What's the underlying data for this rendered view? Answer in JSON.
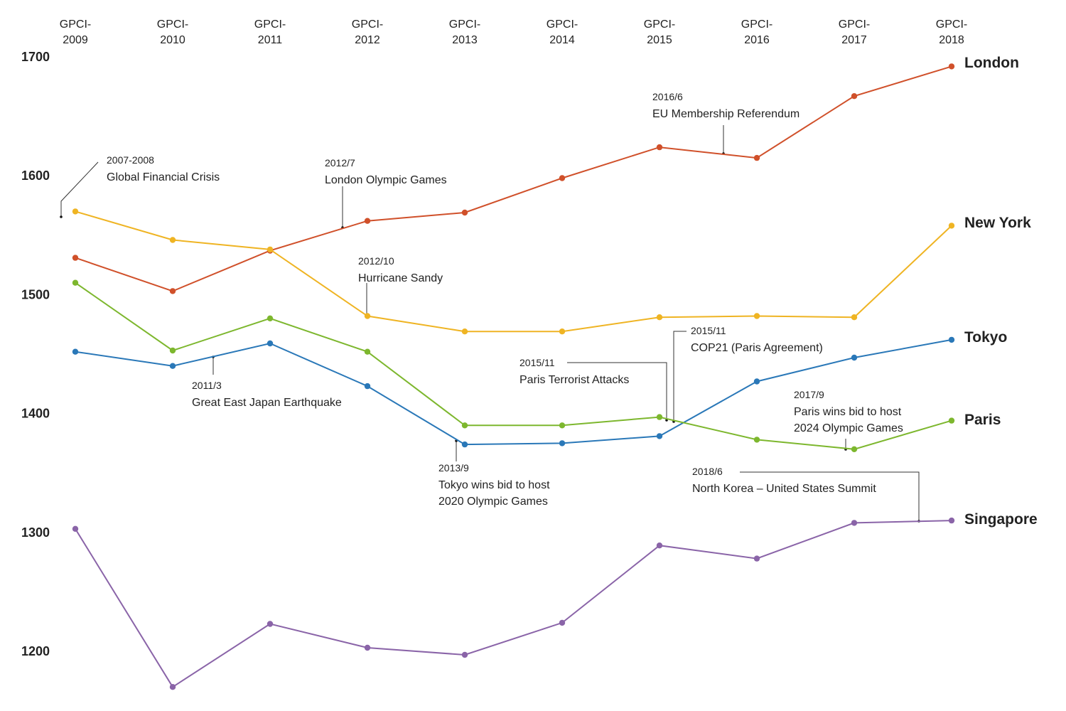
{
  "chart_data": {
    "type": "line",
    "title": "",
    "xlabel": "",
    "ylabel": "",
    "categories": [
      "GPCI-2009",
      "GPCI-2010",
      "GPCI-2011",
      "GPCI-2012",
      "GPCI-2013",
      "GPCI-2014",
      "GPCI-2015",
      "GPCI-2016",
      "GPCI-2017",
      "GPCI-2018"
    ],
    "category_lines": [
      [
        "GPCI-",
        "2009"
      ],
      [
        "GPCI-",
        "2010"
      ],
      [
        "GPCI-",
        "2011"
      ],
      [
        "GPCI-",
        "2012"
      ],
      [
        "GPCI-",
        "2013"
      ],
      [
        "GPCI-",
        "2014"
      ],
      [
        "GPCI-",
        "2015"
      ],
      [
        "GPCI-",
        "2016"
      ],
      [
        "GPCI-",
        "2017"
      ],
      [
        "GPCI-",
        "2018"
      ]
    ],
    "yticks": [
      1200,
      1300,
      1400,
      1500,
      1600,
      1700
    ],
    "ylim": [
      1170,
      1710
    ],
    "grid": false,
    "legend": "series labels at right end",
    "series": [
      {
        "name": "London",
        "color": "#d0502a",
        "values": [
          1531,
          1503,
          1537,
          1562,
          1569,
          1598,
          1624,
          1615,
          1667,
          1692
        ]
      },
      {
        "name": "New York",
        "color": "#efb423",
        "values": [
          1570,
          1546,
          1538,
          1482,
          1469,
          1469,
          1481,
          1482,
          1481,
          1558
        ]
      },
      {
        "name": "Tokyo",
        "color": "#2a78b8",
        "values": [
          1452,
          1440,
          1459,
          1423,
          1374,
          1375,
          1381,
          1427,
          1447,
          1462
        ]
      },
      {
        "name": "Paris",
        "color": "#7db72e",
        "values": [
          1510,
          1453,
          1480,
          1452,
          1390,
          1390,
          1397,
          1378,
          1370,
          1394
        ]
      },
      {
        "name": "Singapore",
        "color": "#8a64a8",
        "values": [
          1303,
          1170,
          1223,
          1203,
          1197,
          1224,
          1289,
          1278,
          1308,
          1310
        ]
      }
    ],
    "annotations": [
      {
        "date": "2007-2008",
        "text": [
          "Global Financial Crisis"
        ]
      },
      {
        "date": "2011/3",
        "text": [
          "Great East Japan Earthquake"
        ]
      },
      {
        "date": "2012/7",
        "text": [
          "London Olympic Games"
        ]
      },
      {
        "date": "2012/10",
        "text": [
          "Hurricane Sandy"
        ]
      },
      {
        "date": "2013/9",
        "text": [
          "Tokyo wins bid to host",
          "2020 Olympic Games"
        ]
      },
      {
        "date": "2015/11",
        "text": [
          "Paris Terrorist Attacks"
        ]
      },
      {
        "date": "2015/11",
        "text": [
          "COP21 (Paris Agreement)"
        ]
      },
      {
        "date": "2016/6",
        "text": [
          "EU Membership Referendum"
        ]
      },
      {
        "date": "2017/9",
        "text": [
          "Paris wins bid to host",
          "2024 Olympic Games"
        ]
      },
      {
        "date": "2018/6",
        "text": [
          "North Korea – United States Summit"
        ]
      }
    ]
  }
}
